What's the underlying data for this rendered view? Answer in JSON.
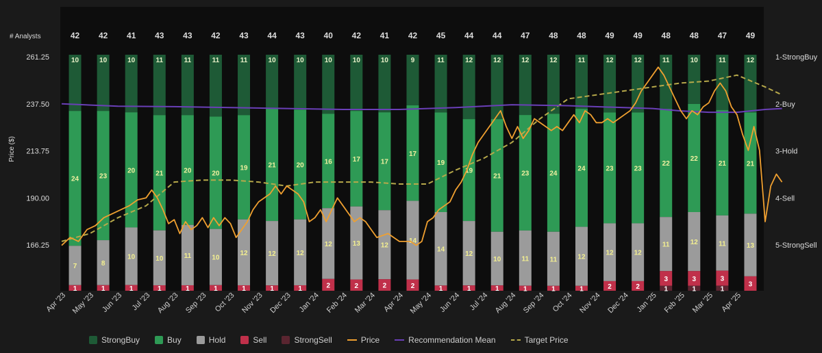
{
  "chart_data": {
    "type": "bar",
    "analysts_label": "# Analysts",
    "y_axis_label": "Price ($)",
    "y_ticks": [
      "261.25",
      "237.50",
      "213.75",
      "190.00",
      "166.25"
    ],
    "y_tick_values": [
      261.25,
      237.5,
      213.75,
      190.0,
      166.25
    ],
    "rec_ticks": [
      "1-StrongBuy",
      "2-Buy",
      "3-Hold",
      "4-Sell",
      "5-StrongSell"
    ],
    "x_ticks": [
      "Apr '23",
      "May '23",
      "Jun '23",
      "Jul '23",
      "Aug '23",
      "Sep '23",
      "Oct '23",
      "Nov '23",
      "Dec '23",
      "Jan '24",
      "Feb '24",
      "Mar '24",
      "Apr '24",
      "May '24",
      "Jun '24",
      "Jul '24",
      "Aug '24",
      "Sep '24",
      "Oct '24",
      "Nov '24",
      "Dec '24",
      "Jan '25",
      "Feb '25",
      "Mar '25",
      "Apr '25"
    ],
    "analysts": [
      42,
      42,
      41,
      43,
      43,
      42,
      43,
      44,
      43,
      40,
      42,
      41,
      42,
      45,
      44,
      44,
      47,
      48,
      48,
      49,
      49,
      48,
      48,
      47,
      49
    ],
    "strong_buy": [
      10,
      10,
      10,
      11,
      11,
      11,
      11,
      10,
      10,
      10,
      10,
      10,
      9,
      11,
      12,
      12,
      12,
      12,
      11,
      12,
      12,
      11,
      10,
      11,
      12
    ],
    "buy": [
      24,
      23,
      20,
      21,
      20,
      20,
      19,
      21,
      20,
      16,
      17,
      17,
      17,
      19,
      19,
      21,
      23,
      24,
      24,
      23,
      23,
      22,
      22,
      21,
      21
    ],
    "hold": [
      7,
      8,
      10,
      10,
      11,
      10,
      12,
      12,
      12,
      12,
      13,
      12,
      14,
      14,
      12,
      10,
      11,
      11,
      12,
      12,
      12,
      11,
      12,
      11,
      13
    ],
    "sell": [
      1,
      1,
      1,
      1,
      1,
      1,
      1,
      1,
      1,
      2,
      2,
      2,
      2,
      1,
      1,
      1,
      1,
      1,
      1,
      2,
      2,
      3,
      3,
      3,
      3
    ],
    "strong_sell": [
      0,
      0,
      0,
      0,
      0,
      0,
      0,
      0,
      0,
      0,
      0,
      0,
      0,
      0,
      0,
      0,
      0,
      0,
      0,
      0,
      0,
      1,
      1,
      1,
      0
    ],
    "price": [
      [
        0,
        166
      ],
      [
        0.3,
        170
      ],
      [
        0.6,
        168
      ],
      [
        0.9,
        174
      ],
      [
        1.2,
        176
      ],
      [
        1.5,
        180
      ],
      [
        1.8,
        182
      ],
      [
        2.1,
        184
      ],
      [
        2.4,
        186
      ],
      [
        2.7,
        189
      ],
      [
        3.0,
        190
      ],
      [
        3.2,
        194
      ],
      [
        3.4,
        190
      ],
      [
        3.6,
        184
      ],
      [
        3.8,
        177
      ],
      [
        4.0,
        179
      ],
      [
        4.2,
        172
      ],
      [
        4.4,
        178
      ],
      [
        4.6,
        174
      ],
      [
        4.8,
        176
      ],
      [
        5.0,
        180
      ],
      [
        5.2,
        175
      ],
      [
        5.4,
        180
      ],
      [
        5.6,
        176
      ],
      [
        5.8,
        180
      ],
      [
        6.0,
        177
      ],
      [
        6.2,
        170
      ],
      [
        6.4,
        174
      ],
      [
        6.6,
        178
      ],
      [
        6.8,
        184
      ],
      [
        7.0,
        188
      ],
      [
        7.2,
        190
      ],
      [
        7.4,
        192
      ],
      [
        7.6,
        196
      ],
      [
        7.8,
        192
      ],
      [
        8.0,
        196
      ],
      [
        8.2,
        194
      ],
      [
        8.4,
        192
      ],
      [
        8.6,
        188
      ],
      [
        8.8,
        178
      ],
      [
        9.0,
        180
      ],
      [
        9.2,
        184
      ],
      [
        9.4,
        178
      ],
      [
        9.6,
        184
      ],
      [
        9.8,
        190
      ],
      [
        10.0,
        186
      ],
      [
        10.2,
        182
      ],
      [
        10.4,
        178
      ],
      [
        10.6,
        180
      ],
      [
        10.8,
        178
      ],
      [
        11.0,
        174
      ],
      [
        11.2,
        170
      ],
      [
        11.4,
        171
      ],
      [
        11.6,
        172
      ],
      [
        11.8,
        170
      ],
      [
        12.0,
        168
      ],
      [
        12.2,
        168
      ],
      [
        12.4,
        168
      ],
      [
        12.6,
        166
      ],
      [
        12.8,
        168
      ],
      [
        13.0,
        178
      ],
      [
        13.2,
        180
      ],
      [
        13.4,
        184
      ],
      [
        13.6,
        186
      ],
      [
        13.8,
        188
      ],
      [
        14.0,
        194
      ],
      [
        14.2,
        198
      ],
      [
        14.4,
        204
      ],
      [
        14.6,
        212
      ],
      [
        14.8,
        218
      ],
      [
        15.0,
        222
      ],
      [
        15.2,
        226
      ],
      [
        15.4,
        230
      ],
      [
        15.6,
        234
      ],
      [
        15.8,
        226
      ],
      [
        16.0,
        220
      ],
      [
        16.2,
        226
      ],
      [
        16.4,
        220
      ],
      [
        16.6,
        224
      ],
      [
        16.8,
        230
      ],
      [
        17.0,
        228
      ],
      [
        17.2,
        226
      ],
      [
        17.4,
        224
      ],
      [
        17.6,
        226
      ],
      [
        17.8,
        224
      ],
      [
        18.0,
        228
      ],
      [
        18.2,
        232
      ],
      [
        18.4,
        228
      ],
      [
        18.6,
        234
      ],
      [
        18.8,
        232
      ],
      [
        19.0,
        228
      ],
      [
        19.2,
        228
      ],
      [
        19.4,
        230
      ],
      [
        19.6,
        228
      ],
      [
        19.8,
        230
      ],
      [
        20.0,
        232
      ],
      [
        20.2,
        234
      ],
      [
        20.4,
        238
      ],
      [
        20.6,
        244
      ],
      [
        20.8,
        248
      ],
      [
        21.0,
        252
      ],
      [
        21.2,
        256
      ],
      [
        21.4,
        252
      ],
      [
        21.6,
        246
      ],
      [
        21.8,
        240
      ],
      [
        22.0,
        234
      ],
      [
        22.2,
        230
      ],
      [
        22.4,
        234
      ],
      [
        22.6,
        232
      ],
      [
        22.8,
        236
      ],
      [
        23.0,
        238
      ],
      [
        23.2,
        244
      ],
      [
        23.4,
        248
      ],
      [
        23.6,
        244
      ],
      [
        23.8,
        236
      ],
      [
        24.0,
        232
      ],
      [
        24.2,
        222
      ],
      [
        24.4,
        214
      ],
      [
        24.6,
        226
      ],
      [
        24.8,
        214
      ],
      [
        25.0,
        178
      ],
      [
        25.2,
        196
      ],
      [
        25.4,
        202
      ],
      [
        25.6,
        198
      ]
    ],
    "target_price": [
      [
        0,
        168
      ],
      [
        1,
        172
      ],
      [
        2,
        180
      ],
      [
        3,
        186
      ],
      [
        4,
        198
      ],
      [
        5,
        199
      ],
      [
        6,
        199
      ],
      [
        7,
        198
      ],
      [
        8,
        196
      ],
      [
        9,
        198
      ],
      [
        10,
        198
      ],
      [
        11,
        198
      ],
      [
        12,
        197
      ],
      [
        13,
        197
      ],
      [
        14,
        204
      ],
      [
        15,
        210
      ],
      [
        16,
        218
      ],
      [
        17,
        230
      ],
      [
        18,
        240
      ],
      [
        19,
        242
      ],
      [
        20,
        244
      ],
      [
        21,
        246
      ],
      [
        22,
        248
      ],
      [
        23,
        249
      ],
      [
        24,
        252
      ],
      [
        25,
        246
      ],
      [
        25.6,
        242
      ]
    ],
    "rec_mean": [
      [
        0,
        2.0
      ],
      [
        2,
        2.05
      ],
      [
        4,
        2.06
      ],
      [
        6,
        2.08
      ],
      [
        8,
        2.1
      ],
      [
        10,
        2.12
      ],
      [
        12,
        2.12
      ],
      [
        14,
        2.08
      ],
      [
        16,
        2.02
      ],
      [
        18,
        2.04
      ],
      [
        20,
        2.08
      ],
      [
        21,
        2.1
      ],
      [
        22,
        2.15
      ],
      [
        23,
        2.18
      ],
      [
        24,
        2.18
      ],
      [
        25,
        2.12
      ],
      [
        25.6,
        2.1
      ]
    ],
    "legend": [
      {
        "label": "StrongBuy",
        "color": "#1e5a36",
        "kind": "box"
      },
      {
        "label": "Buy",
        "color": "#2e9a55",
        "kind": "box"
      },
      {
        "label": "Hold",
        "color": "#9b9b9b",
        "kind": "box"
      },
      {
        "label": "Sell",
        "color": "#c0304a",
        "kind": "box"
      },
      {
        "label": "StrongSell",
        "color": "#5a2530",
        "kind": "box"
      },
      {
        "label": "Price",
        "color": "#f0a030",
        "kind": "line"
      },
      {
        "label": "Recommendation Mean",
        "color": "#6a3fb8",
        "kind": "line"
      },
      {
        "label": "Target Price",
        "color": "#b7a94a",
        "kind": "dash"
      }
    ]
  }
}
